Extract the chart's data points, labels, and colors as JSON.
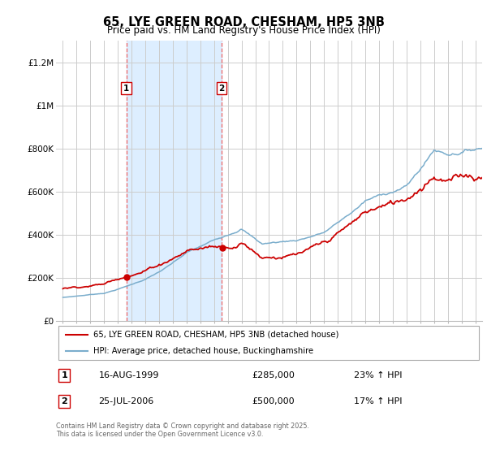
{
  "title": "65, LYE GREEN ROAD, CHESHAM, HP5 3NB",
  "subtitle": "Price paid vs. HM Land Registry's House Price Index (HPI)",
  "legend_line1": "65, LYE GREEN ROAD, CHESHAM, HP5 3NB (detached house)",
  "legend_line2": "HPI: Average price, detached house, Buckinghamshire",
  "footer": "Contains HM Land Registry data © Crown copyright and database right 2025.\nThis data is licensed under the Open Government Licence v3.0.",
  "annotation1_label": "1",
  "annotation1_date": "16-AUG-1999",
  "annotation1_price": "£285,000",
  "annotation1_hpi": "23% ↑ HPI",
  "annotation2_label": "2",
  "annotation2_date": "25-JUL-2006",
  "annotation2_price": "£500,000",
  "annotation2_hpi": "17% ↑ HPI",
  "sale1_year": 1999.62,
  "sale1_price": 285000,
  "sale2_year": 2006.56,
  "sale2_price": 500000,
  "red_color": "#cc0000",
  "blue_color": "#7aadcc",
  "shade_color": "#ddeeff",
  "dashed_color": "#ee6666",
  "background_color": "#ffffff",
  "grid_color": "#cccccc",
  "ylim": [
    0,
    1300000
  ],
  "xlim_start": 1994.5,
  "xlim_end": 2025.5,
  "yticks": [
    0,
    200000,
    400000,
    600000,
    800000,
    1000000,
    1200000
  ],
  "ylabels": [
    "£0",
    "£200K",
    "£400K",
    "£600K",
    "£800K",
    "£1M",
    "£1.2M"
  ]
}
